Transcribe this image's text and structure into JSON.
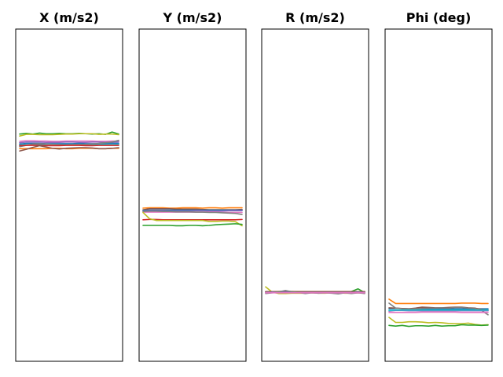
{
  "chart_data": [
    {
      "type": "line",
      "title": "X (m/s2)",
      "ylim": [
        0,
        100
      ],
      "x": [
        0,
        1,
        2,
        3,
        4,
        5,
        6,
        7,
        8,
        9,
        10,
        11,
        12,
        13,
        14,
        15
      ],
      "series": [
        {
          "color": "#2ca02c",
          "values": [
            68.4,
            68.6,
            68.4,
            68.7,
            68.5,
            68.5,
            68.6,
            68.5,
            68.5,
            68.6,
            68.5,
            68.4,
            68.5,
            68.3,
            69.0,
            68.4
          ]
        },
        {
          "color": "#bcbd22",
          "values": [
            67.8,
            68.3,
            68.3,
            68.2,
            68.2,
            68.2,
            68.3,
            68.4,
            68.4,
            68.5,
            68.5,
            68.5,
            68.3,
            68.4,
            68.4,
            68.2
          ]
        },
        {
          "color": "#e377c2",
          "values": [
            66.2,
            66.4,
            66.4,
            66.3,
            66.3,
            66.2,
            66.2,
            66.3,
            66.3,
            66.3,
            66.3,
            66.3,
            66.2,
            66.2,
            66.3,
            66.2
          ]
        },
        {
          "color": "#9467bd",
          "values": [
            65.8,
            66.0,
            66.0,
            66.0,
            65.9,
            65.9,
            65.9,
            66.0,
            66.0,
            65.9,
            65.9,
            66.0,
            66.0,
            65.9,
            65.9,
            66.0
          ]
        },
        {
          "color": "#1f77b4",
          "values": [
            65.4,
            65.6,
            65.6,
            65.6,
            65.5,
            65.5,
            65.5,
            65.5,
            65.5,
            65.6,
            65.5,
            65.5,
            65.5,
            65.6,
            65.6,
            65.6
          ]
        },
        {
          "color": "#17becf",
          "values": [
            65.1,
            65.2,
            65.2,
            65.3,
            65.3,
            65.3,
            65.2,
            65.2,
            65.3,
            65.3,
            65.2,
            65.2,
            65.3,
            65.3,
            65.2,
            65.3
          ]
        },
        {
          "color": "#7f7f7f",
          "values": [
            64.6,
            65.0,
            65.4,
            65.5,
            65.4,
            65.3,
            65.2,
            65.1,
            65.2,
            65.2,
            65.3,
            65.4,
            65.6,
            65.8,
            66.0,
            66.5
          ]
        },
        {
          "color": "#d62728",
          "values": [
            64.9,
            65.0,
            65.0,
            65.0,
            64.9,
            64.9,
            64.9,
            65.0,
            65.0,
            65.0,
            64.9,
            64.9,
            65.0,
            65.0,
            65.0,
            65.0
          ]
        },
        {
          "color": "#ff7f0e",
          "values": [
            64.0,
            64.0,
            64.0,
            64.0,
            64.0,
            64.1,
            64.1,
            64.0,
            64.0,
            64.1,
            64.1,
            64.1,
            64.0,
            64.0,
            64.1,
            64.1
          ]
        },
        {
          "color": "#8c564b",
          "values": [
            63.3,
            63.8,
            64.4,
            64.9,
            64.5,
            64.1,
            63.9,
            64.1,
            64.2,
            64.3,
            64.3,
            64.2,
            64.0,
            64.0,
            64.1,
            64.3
          ]
        }
      ]
    },
    {
      "type": "line",
      "title": "Y (m/s2)",
      "ylim": [
        0,
        100
      ],
      "x": [
        0,
        1,
        2,
        3,
        4,
        5,
        6,
        7,
        8,
        9,
        10,
        11,
        12,
        13,
        14,
        15
      ],
      "series": [
        {
          "color": "#ff7f0e",
          "values": [
            46.1,
            46.2,
            46.2,
            46.2,
            46.1,
            46.1,
            46.2,
            46.2,
            46.2,
            46.1,
            46.2,
            46.2,
            46.1,
            46.2,
            46.2,
            46.2
          ]
        },
        {
          "color": "#8c564b",
          "values": [
            45.6,
            45.9,
            45.9,
            45.9,
            45.9,
            45.8,
            45.8,
            45.8,
            45.8,
            45.7,
            45.6,
            45.6,
            45.6,
            45.6,
            45.6,
            45.7
          ]
        },
        {
          "color": "#1f77b4",
          "values": [
            45.4,
            45.5,
            45.5,
            45.5,
            45.5,
            45.5,
            45.5,
            45.5,
            45.5,
            45.5,
            45.5,
            45.5,
            45.5,
            45.5,
            45.5,
            45.5
          ]
        },
        {
          "color": "#9467bd",
          "values": [
            45.2,
            45.3,
            45.3,
            45.3,
            45.2,
            45.2,
            45.2,
            45.2,
            45.3,
            45.3,
            45.2,
            45.2,
            45.2,
            45.3,
            45.3,
            45.3
          ]
        },
        {
          "color": "#e377c2",
          "values": [
            44.9,
            44.9,
            44.9,
            44.9,
            44.9,
            44.9,
            44.9,
            44.9,
            44.9,
            44.9,
            44.9,
            44.9,
            44.8,
            44.8,
            44.8,
            44.8
          ]
        },
        {
          "color": "#7f7f7f",
          "values": [
            45.1,
            45.2,
            45.2,
            45.1,
            45.1,
            45.0,
            45.0,
            45.0,
            44.9,
            44.9,
            44.8,
            44.8,
            44.7,
            44.6,
            44.5,
            44.2
          ]
        },
        {
          "color": "#d62728",
          "values": [
            42.6,
            42.7,
            42.7,
            42.6,
            42.6,
            42.6,
            42.6,
            42.6,
            42.6,
            42.6,
            42.6,
            42.6,
            42.6,
            42.6,
            42.6,
            42.7
          ]
        },
        {
          "color": "#bcbd22",
          "values": [
            44.8,
            42.9,
            42.4,
            42.4,
            42.4,
            42.4,
            42.4,
            42.4,
            42.4,
            42.4,
            42.1,
            42.1,
            42.2,
            42.2,
            42.0,
            40.8
          ]
        },
        {
          "color": "#2ca02c",
          "values": [
            40.9,
            40.9,
            40.9,
            40.9,
            40.9,
            40.8,
            40.8,
            40.9,
            40.9,
            40.8,
            40.9,
            41.1,
            41.2,
            41.3,
            41.4,
            41.2
          ]
        }
      ]
    },
    {
      "type": "line",
      "title": "R (m/s2)",
      "ylim": [
        0,
        100
      ],
      "x": [
        0,
        1,
        2,
        3,
        4,
        5,
        6,
        7,
        8,
        9,
        10,
        11,
        12,
        13,
        14,
        15
      ],
      "series": [
        {
          "color": "#bcbd22",
          "values": [
            22.4,
            20.8,
            20.4,
            20.4,
            20.5,
            20.5,
            20.5,
            20.6,
            20.5,
            20.5,
            20.6,
            20.6,
            20.5,
            20.5,
            20.6,
            20.5
          ]
        },
        {
          "color": "#2ca02c",
          "values": [
            20.8,
            20.9,
            20.9,
            20.9,
            20.8,
            20.8,
            20.8,
            20.9,
            20.9,
            20.8,
            20.8,
            20.8,
            20.8,
            21.0,
            21.8,
            20.7
          ]
        },
        {
          "color": "#ff7f0e",
          "values": [
            21.0,
            21.0,
            21.0,
            21.0,
            21.0,
            21.0,
            21.0,
            21.0,
            21.0,
            21.0,
            21.0,
            21.0,
            21.0,
            21.0,
            21.0,
            21.0
          ]
        },
        {
          "color": "#1f77b4",
          "values": [
            20.9,
            20.9,
            20.9,
            21.0,
            20.9,
            20.9,
            20.9,
            20.9,
            20.9,
            20.9,
            20.9,
            20.9,
            20.9,
            20.9,
            20.9,
            20.9
          ]
        },
        {
          "color": "#8c564b",
          "values": [
            20.9,
            20.8,
            21.0,
            21.1,
            21.0,
            20.9,
            20.9,
            20.9,
            20.9,
            20.9,
            20.9,
            20.9,
            20.9,
            20.9,
            20.8,
            20.9
          ]
        },
        {
          "color": "#9467bd",
          "values": [
            20.7,
            20.8,
            20.8,
            20.8,
            20.8,
            20.7,
            20.7,
            20.7,
            20.7,
            20.7,
            20.7,
            20.7,
            20.7,
            20.7,
            20.8,
            20.7
          ]
        },
        {
          "color": "#7f7f7f",
          "values": [
            20.4,
            20.6,
            20.9,
            21.3,
            20.9,
            20.7,
            20.4,
            20.6,
            20.5,
            20.6,
            20.5,
            20.3,
            20.6,
            20.4,
            20.6,
            20.4
          ]
        },
        {
          "color": "#e377c2",
          "values": [
            20.6,
            20.6,
            20.6,
            20.6,
            20.6,
            20.6,
            20.6,
            20.6,
            20.6,
            20.6,
            20.6,
            20.6,
            20.6,
            20.6,
            20.6,
            20.6
          ]
        }
      ]
    },
    {
      "type": "line",
      "title": "Phi (deg)",
      "ylim": [
        0,
        100
      ],
      "x": [
        0,
        1,
        2,
        3,
        4,
        5,
        6,
        7,
        8,
        9,
        10,
        11,
        12,
        13,
        14,
        15
      ],
      "series": [
        {
          "color": "#ff7f0e",
          "values": [
            18.7,
            17.4,
            17.4,
            17.4,
            17.4,
            17.4,
            17.4,
            17.4,
            17.4,
            17.4,
            17.4,
            17.5,
            17.5,
            17.5,
            17.4,
            17.4
          ]
        },
        {
          "color": "#1f77b4",
          "values": [
            15.8,
            15.9,
            15.9,
            15.8,
            15.8,
            15.8,
            15.8,
            15.8,
            15.8,
            15.8,
            15.8,
            15.8,
            15.8,
            15.8,
            15.8,
            15.8
          ]
        },
        {
          "color": "#8c564b",
          "values": [
            16.1,
            16.0,
            15.9,
            15.8,
            16.0,
            16.3,
            16.2,
            16.1,
            16.1,
            16.2,
            16.3,
            16.3,
            16.1,
            16.0,
            15.6,
            15.4
          ]
        },
        {
          "color": "#7f7f7f",
          "values": [
            17.5,
            16.0,
            15.8,
            15.7,
            15.8,
            15.9,
            16.0,
            16.0,
            16.1,
            16.0,
            16.2,
            16.2,
            16.0,
            15.9,
            15.3,
            14.0
          ]
        },
        {
          "color": "#9467bd",
          "values": [
            15.1,
            15.3,
            15.3,
            15.2,
            15.2,
            15.2,
            15.2,
            15.2,
            15.2,
            15.2,
            15.2,
            15.2,
            15.2,
            15.2,
            15.2,
            15.2
          ]
        },
        {
          "color": "#e377c2",
          "values": [
            14.7,
            14.7,
            14.7,
            14.7,
            14.7,
            14.8,
            14.8,
            14.8,
            14.8,
            14.8,
            14.8,
            14.7,
            14.7,
            14.7,
            14.7,
            14.7
          ]
        },
        {
          "color": "#17becf",
          "values": [
            15.3,
            15.4,
            15.4,
            15.4,
            15.4,
            15.4,
            15.4,
            15.4,
            15.4,
            15.4,
            15.4,
            15.4,
            15.4,
            15.4,
            15.4,
            15.4
          ]
        },
        {
          "color": "#bcbd22",
          "values": [
            13.2,
            11.7,
            11.7,
            11.9,
            11.9,
            11.8,
            11.6,
            11.7,
            11.6,
            11.4,
            11.3,
            11.3,
            11.5,
            11.1,
            10.9,
            11.0
          ]
        },
        {
          "color": "#2ca02c",
          "values": [
            10.8,
            10.6,
            10.8,
            10.5,
            10.7,
            10.7,
            10.6,
            10.8,
            10.6,
            10.7,
            10.7,
            11.0,
            10.9,
            10.9,
            10.8,
            10.9
          ]
        }
      ]
    }
  ]
}
